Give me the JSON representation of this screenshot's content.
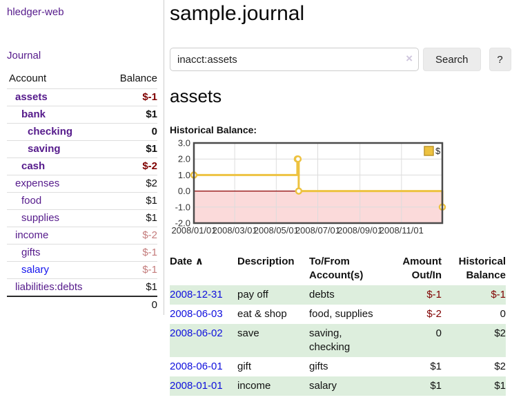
{
  "colors": {
    "link_purple": "#551A8B",
    "link_blue": "#1414EE",
    "date_link_blue": "#0F0FDD",
    "negative_strong": "#7F0000",
    "negative_dim": "#C47C7C",
    "row_green": "#DDEEDD",
    "chart_line": "#EDC240",
    "chart_negative_fill": "#FBDADA",
    "chart_zero_line": "#8B0000",
    "chart_border": "#4A4A4A",
    "gridline": "#DCDCDC"
  },
  "header": {
    "app_title": "hledger-web"
  },
  "sidebar": {
    "journal_link": "Journal",
    "accounts": {
      "col_account": "Account",
      "col_balance": "Balance",
      "rows": [
        {
          "name": "assets",
          "balance": "$-1",
          "indent": 1,
          "matched": true,
          "balance_tone": "negative"
        },
        {
          "name": "bank",
          "balance": "$1",
          "indent": 2,
          "matched": true,
          "balance_tone": "normal"
        },
        {
          "name": "checking",
          "balance": "0",
          "indent": 3,
          "matched": true,
          "balance_tone": "normal"
        },
        {
          "name": "saving",
          "balance": "$1",
          "indent": 3,
          "matched": true,
          "balance_tone": "normal"
        },
        {
          "name": "cash",
          "balance": "$-2",
          "indent": 2,
          "matched": true,
          "balance_tone": "negative"
        },
        {
          "name": "expenses",
          "balance": "$2",
          "indent": 1,
          "matched": false,
          "balance_tone": "normal"
        },
        {
          "name": "food",
          "balance": "$1",
          "indent": 2,
          "matched": false,
          "balance_tone": "normal"
        },
        {
          "name": "supplies",
          "balance": "$1",
          "indent": 2,
          "matched": false,
          "balance_tone": "normal"
        },
        {
          "name": "income",
          "balance": "$-2",
          "indent": 1,
          "matched": false,
          "balance_tone": "negative-dim"
        },
        {
          "name": "gifts",
          "balance": "$-1",
          "indent": 2,
          "matched": false,
          "balance_tone": "negative-dim"
        },
        {
          "name": "salary",
          "balance": "$-1",
          "indent": 2,
          "matched": false,
          "balance_tone": "negative-dim",
          "link_tone": "blue"
        },
        {
          "name": "liabilities:debts",
          "balance": "$1",
          "indent": 1,
          "matched": false,
          "balance_tone": "normal"
        }
      ],
      "total": "0"
    }
  },
  "main": {
    "page_title": "sample.journal",
    "search": {
      "value": "inacct:assets",
      "clear_icon": "×",
      "search_button": "Search",
      "help_button": "?"
    },
    "account_heading": "assets",
    "section_label": "Historical Balance:"
  },
  "chart_data": {
    "type": "line",
    "step": true,
    "title": "Historical Balance:",
    "series": [
      {
        "name": "$",
        "points": [
          [
            "2008-01-01",
            1
          ],
          [
            "2008-06-01",
            2
          ],
          [
            "2008-06-02",
            2
          ],
          [
            "2008-06-03",
            0
          ],
          [
            "2008-12-31",
            -1
          ]
        ]
      }
    ],
    "ylim": [
      -2,
      3
    ],
    "yticks": [
      3.0,
      2.0,
      1.0,
      0.0,
      -1.0,
      -2.0
    ],
    "xticks": [
      "2008/01/01",
      "2008/03/01",
      "2008/05/01",
      "2008/07/01",
      "2008/09/01",
      "2008/11/01"
    ],
    "x_range": [
      "2008-01-01",
      "2008-12-31"
    ],
    "legend": {
      "label": "$",
      "position": "top-right"
    },
    "negative_region_shaded": true,
    "grid": true
  },
  "register": {
    "headers": {
      "date": "Date",
      "sort_indicator": "∧",
      "description": "Description",
      "tofrom": "To/From Account(s)",
      "amount": "Amount Out/In",
      "historical": "Historical Balance"
    },
    "rows": [
      {
        "date": "2008-12-31",
        "description": "pay off",
        "accounts": "debts",
        "amount": "$-1",
        "balance": "$-1",
        "amount_tone": "negative",
        "balance_tone": "negative"
      },
      {
        "date": "2008-06-03",
        "description": "eat & shop",
        "accounts": "food, supplies",
        "amount": "$-2",
        "balance": "0",
        "amount_tone": "negative",
        "balance_tone": "normal"
      },
      {
        "date": "2008-06-02",
        "description": "save",
        "accounts": "saving, checking",
        "amount": "0",
        "balance": "$2",
        "amount_tone": "normal",
        "balance_tone": "normal"
      },
      {
        "date": "2008-06-01",
        "description": "gift",
        "accounts": "gifts",
        "amount": "$1",
        "balance": "$2",
        "amount_tone": "normal",
        "balance_tone": "normal"
      },
      {
        "date": "2008-01-01",
        "description": "income",
        "accounts": "salary",
        "amount": "$1",
        "balance": "$1",
        "amount_tone": "normal",
        "balance_tone": "normal"
      }
    ]
  }
}
